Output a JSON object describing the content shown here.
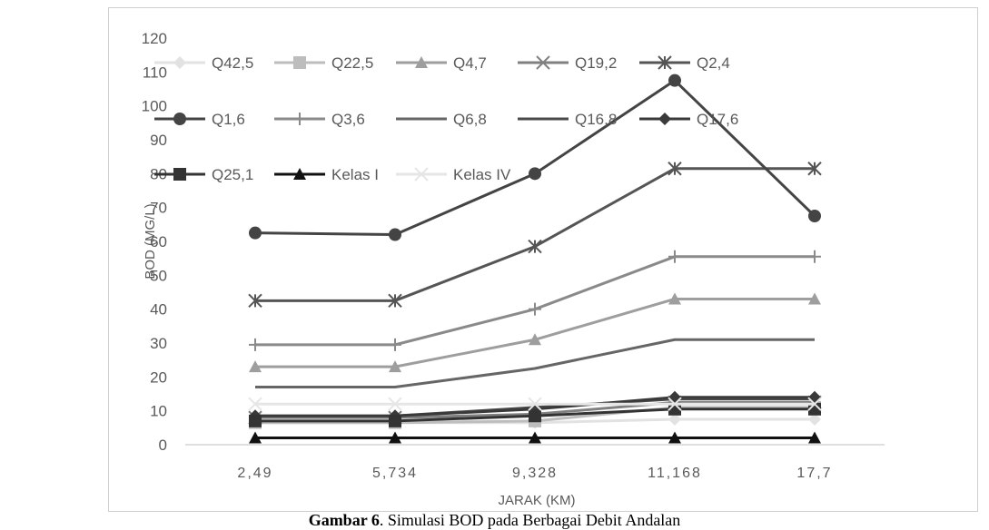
{
  "chart_data": {
    "type": "line",
    "title": "",
    "xlabel": "JARAK (KM)",
    "ylabel": "BOD (MG/L)",
    "categories": [
      "2,49",
      "5,734",
      "9,328",
      "11,168",
      "17,7"
    ],
    "ylim": [
      0,
      120
    ],
    "yticks": [
      0,
      10,
      20,
      30,
      40,
      50,
      60,
      70,
      80,
      90,
      100,
      110,
      120
    ],
    "grid": false,
    "legend": "top",
    "series": [
      {
        "name": "Q42,5",
        "values": [
          6.5,
          6.5,
          6.5,
          7.5,
          7.5
        ],
        "color": "#e2e2e2",
        "marker": "diamond",
        "width": 3
      },
      {
        "name": "Q22,5",
        "values": [
          6.5,
          6.5,
          7.0,
          11.0,
          11.0
        ],
        "color": "#bdbdbd",
        "marker": "square",
        "width": 3
      },
      {
        "name": "Q4,7",
        "values": [
          23,
          23,
          31,
          43,
          43
        ],
        "color": "#9e9e9e",
        "marker": "triangle",
        "width": 3
      },
      {
        "name": "Q19,2",
        "values": [
          8.0,
          8.0,
          9.0,
          12.5,
          12.5
        ],
        "color": "#808080",
        "marker": "x",
        "width": 3
      },
      {
        "name": "Q2,4",
        "values": [
          42.5,
          42.5,
          58.5,
          81.5,
          81.5
        ],
        "color": "#555555",
        "marker": "asterisk",
        "width": 3
      },
      {
        "name": "Q1,6",
        "values": [
          62.5,
          62,
          80,
          107.5,
          67.5
        ],
        "color": "#444444",
        "marker": "circle",
        "width": 3
      },
      {
        "name": "Q3,6",
        "values": [
          29.5,
          29.5,
          40,
          55.5,
          55.5
        ],
        "color": "#8a8a8a",
        "marker": "plus",
        "width": 3
      },
      {
        "name": "Q6,8",
        "values": [
          17,
          17,
          22.5,
          31,
          31
        ],
        "color": "#666666",
        "marker": "none",
        "width": 3
      },
      {
        "name": "Q16,8",
        "values": [
          8.5,
          8.5,
          11,
          13.5,
          13.5
        ],
        "color": "#4a4a4a",
        "marker": "none",
        "width": 3
      },
      {
        "name": "Q17,6",
        "values": [
          8.5,
          8.5,
          10.5,
          14,
          14
        ],
        "color": "#3a3a3a",
        "marker": "diamond",
        "width": 3
      },
      {
        "name": "Q25,1",
        "values": [
          7,
          7,
          8.5,
          10.5,
          10.5
        ],
        "color": "#333333",
        "marker": "square",
        "width": 3
      },
      {
        "name": "Kelas I",
        "values": [
          2,
          2,
          2,
          2,
          2
        ],
        "color": "#111111",
        "marker": "triangle",
        "width": 3
      },
      {
        "name": "Kelas IV",
        "values": [
          12,
          12,
          12,
          12,
          12
        ],
        "color": "#e6e6e6",
        "marker": "x",
        "width": 3
      }
    ]
  },
  "caption": {
    "prefix": "Gambar 6",
    "text": ". Simulasi BOD pada Berbagai Debit Andalan"
  }
}
